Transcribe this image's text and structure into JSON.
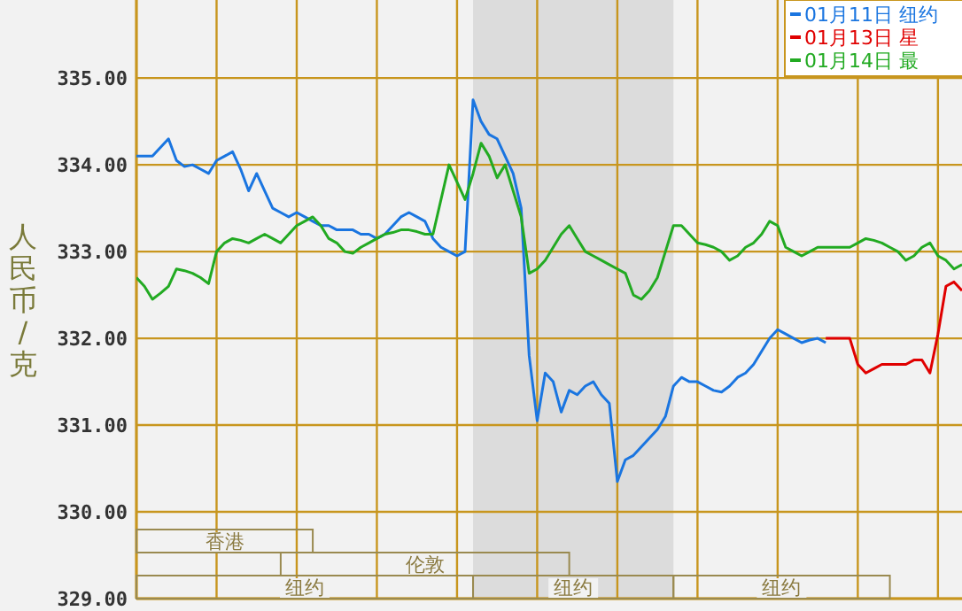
{
  "chart_data": {
    "type": "line",
    "ylabel": "人民币/克",
    "categories": [
      null,
      null,
      null,
      null,
      null,
      null,
      null,
      null,
      null,
      null,
      null,
      null,
      null,
      null,
      null,
      null,
      null,
      null,
      null,
      null,
      null,
      null,
      null,
      null,
      null,
      null,
      null,
      null,
      null,
      null,
      null,
      null,
      null,
      null,
      null,
      null,
      null,
      null,
      null,
      null,
      null,
      null,
      null,
      null,
      null,
      null,
      null,
      null,
      null,
      null,
      null,
      null,
      null,
      null,
      null,
      null,
      null,
      null,
      null,
      null,
      null,
      null,
      null,
      null,
      null,
      null,
      null,
      null,
      null,
      null,
      null,
      null,
      null,
      null,
      null,
      null,
      null,
      null,
      null,
      null,
      null,
      null,
      null,
      null,
      null,
      null,
      null,
      null,
      null,
      null,
      null,
      null,
      null,
      null,
      null,
      null,
      null,
      null,
      null,
      null,
      null,
      null,
      null,
      null
    ],
    "ylim": [
      329,
      335.9
    ],
    "yticks": [
      {
        "value": 329,
        "label": "329.00"
      },
      {
        "value": 330,
        "label": "330.00"
      },
      {
        "value": 331,
        "label": "331.00"
      },
      {
        "value": 332,
        "label": "332.00"
      },
      {
        "value": 333,
        "label": "333.00"
      },
      {
        "value": 334,
        "label": "334.00"
      },
      {
        "value": 335,
        "label": "335.00"
      }
    ],
    "grid": true,
    "legend": "top right",
    "line_style": "solid",
    "annotations": [
      "纽约",
      "纽约",
      "纽约",
      "伦敦",
      "香港"
    ],
    "series": [
      {
        "name": "01月11日 纽约",
        "color": "#1a75e0",
        "values": [
          334.1,
          334.1,
          334.1,
          334.2,
          334.3,
          334.05,
          333.98,
          334.0,
          333.95,
          333.9,
          334.05,
          334.1,
          334.15,
          333.95,
          333.7,
          333.9,
          333.7,
          333.5,
          333.45,
          333.4,
          333.45,
          333.4,
          333.35,
          333.3,
          333.3,
          333.25,
          333.25,
          333.25,
          333.2,
          333.2,
          333.15,
          333.2,
          333.3,
          333.4,
          333.45,
          333.4,
          333.35,
          333.15,
          333.05,
          333.0,
          332.95,
          333.0,
          334.75,
          334.5,
          334.35,
          334.3,
          334.1,
          333.9,
          333.5,
          331.8,
          331.05,
          331.6,
          331.5,
          331.15,
          331.4,
          331.35,
          331.45,
          331.5,
          331.35,
          331.25,
          330.35,
          330.6,
          330.65,
          330.75,
          330.85,
          330.95,
          331.1,
          331.45,
          331.55,
          331.5,
          331.5,
          331.45,
          331.4,
          331.38,
          331.45,
          331.55,
          331.6,
          331.7,
          331.85,
          332.0,
          332.1,
          332.05,
          332.0,
          331.95,
          331.98,
          332.0,
          331.95,
          null,
          null,
          null,
          null,
          null,
          null,
          null,
          null,
          null,
          null,
          null,
          null,
          null,
          null,
          null,
          null,
          null
        ]
      },
      {
        "name": "01月13日 星",
        "color": "#e00000",
        "values": [
          null,
          null,
          null,
          null,
          null,
          null,
          null,
          null,
          null,
          null,
          null,
          null,
          null,
          null,
          null,
          null,
          null,
          null,
          null,
          null,
          null,
          null,
          null,
          null,
          null,
          null,
          null,
          null,
          null,
          null,
          null,
          null,
          null,
          null,
          null,
          null,
          null,
          null,
          null,
          null,
          null,
          null,
          null,
          null,
          null,
          null,
          null,
          null,
          null,
          null,
          null,
          null,
          null,
          null,
          null,
          null,
          null,
          null,
          null,
          null,
          null,
          null,
          null,
          null,
          null,
          null,
          null,
          null,
          null,
          null,
          null,
          null,
          null,
          null,
          null,
          null,
          null,
          null,
          null,
          null,
          null,
          null,
          null,
          null,
          null,
          null,
          332.0,
          332.0,
          332.0,
          332.0,
          331.7,
          331.6,
          331.65,
          331.7,
          331.7,
          331.7,
          331.7,
          331.75,
          331.75,
          331.6,
          332.05,
          332.6,
          332.65,
          332.55
        ]
      },
      {
        "name": "01月14日 最",
        "color": "#22aa22",
        "values": [
          332.7,
          332.6,
          332.45,
          332.52,
          332.6,
          332.8,
          332.78,
          332.75,
          332.7,
          332.63,
          333.0,
          333.1,
          333.15,
          333.13,
          333.1,
          333.15,
          333.2,
          333.15,
          333.1,
          333.2,
          333.3,
          333.35,
          333.4,
          333.3,
          333.15,
          333.1,
          333.0,
          332.98,
          333.05,
          333.1,
          333.15,
          333.2,
          333.22,
          333.25,
          333.25,
          333.23,
          333.2,
          333.2,
          333.6,
          334.0,
          333.8,
          333.6,
          333.9,
          334.25,
          334.1,
          333.85,
          334.0,
          333.7,
          333.4,
          332.75,
          332.8,
          332.9,
          333.05,
          333.2,
          333.3,
          333.15,
          333.0,
          332.95,
          332.9,
          332.85,
          332.8,
          332.75,
          332.5,
          332.45,
          332.55,
          332.7,
          333.0,
          333.3,
          333.3,
          333.2,
          333.1,
          333.08,
          333.05,
          333.0,
          332.9,
          332.95,
          333.05,
          333.1,
          333.2,
          333.35,
          333.3,
          333.05,
          333.0,
          332.95,
          333.0,
          333.05,
          333.05,
          333.05,
          333.05,
          333.05,
          333.1,
          333.15,
          333.13,
          333.1,
          333.05,
          333.0,
          332.9,
          332.95,
          333.05,
          333.1,
          332.95,
          332.9,
          332.8,
          332.85
        ]
      }
    ]
  }
}
